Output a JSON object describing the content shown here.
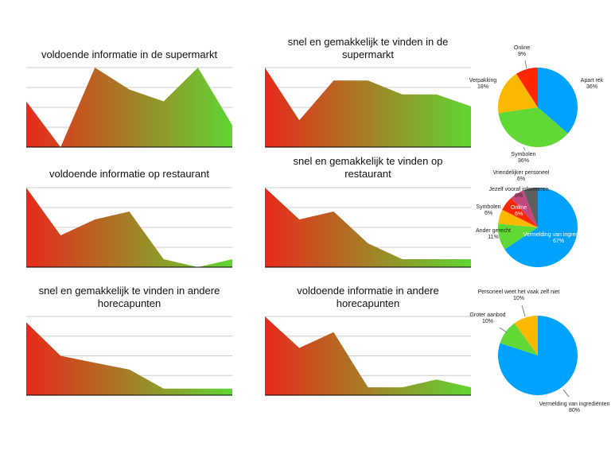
{
  "colors": {
    "gradient_start": "#e8291a",
    "gradient_end": "#5fd632",
    "grid": "#cccccc",
    "blue": "#00a2ff",
    "green": "#61d836",
    "orange": "#fbb800",
    "red": "#ff2600",
    "pink": "#c2497d",
    "gray": "#5e5e5e"
  },
  "chart_data": [
    {
      "type": "area",
      "title_lines": [
        "voldoende informatie in de supermarkt"
      ],
      "values": [
        2.3,
        0,
        4,
        2.9,
        2.3,
        4,
        1.1
      ],
      "ylim": [
        0,
        4
      ],
      "grid": true
    },
    {
      "type": "area",
      "title_lines": [
        "snel en gemakkelijk te vinden in de",
        "supermarkt"
      ],
      "values": [
        4,
        1.35,
        3.35,
        3.35,
        2.65,
        2.65,
        2.05
      ],
      "ylim": [
        0,
        4
      ],
      "grid": true
    },
    {
      "type": "area",
      "title_lines": [
        "voldoende informatie op restaurant"
      ],
      "values": [
        4,
        1.6,
        2.4,
        2.8,
        0.4,
        0,
        0.4
      ],
      "ylim": [
        0,
        4
      ],
      "grid": true
    },
    {
      "type": "area",
      "title_lines": [
        "snel en gemakkelijk te vinden op",
        "restaurant"
      ],
      "values": [
        4,
        2.4,
        2.8,
        1.2,
        0.4,
        0.4,
        0.4
      ],
      "ylim": [
        0,
        4
      ],
      "grid": true
    },
    {
      "type": "area",
      "title_lines": [
        "snel en gemakkelijk te vinden in andere",
        "horecapunten"
      ],
      "values": [
        3.7,
        2.0,
        1.65,
        1.3,
        0.33,
        0.33,
        0.33
      ],
      "ylim": [
        0,
        4
      ],
      "grid": true
    },
    {
      "type": "area",
      "title_lines": [
        "voldoende informatie in andere",
        "horecapunten"
      ],
      "values": [
        4,
        2.4,
        3.2,
        0.4,
        0.4,
        0.8,
        0.4
      ],
      "ylim": [
        0,
        4
      ],
      "grid": true
    },
    {
      "type": "pie",
      "slices": [
        {
          "label": "Apart rek",
          "pct": "36%",
          "value": 36,
          "color": "#00a2ff"
        },
        {
          "label": "Symbolen",
          "pct": "36%",
          "value": 36,
          "color": "#61d836"
        },
        {
          "label": "Verpakking",
          "pct": "18%",
          "value": 18,
          "color": "#fbb800"
        },
        {
          "label": "Online",
          "pct": "9%",
          "value": 9,
          "color": "#ff2600"
        }
      ]
    },
    {
      "type": "pie",
      "slices": [
        {
          "label": "Vermelding van ingrediënten",
          "pct": "67%",
          "value": 67,
          "color": "#00a2ff"
        },
        {
          "label": "Ander gerecht",
          "pct": "11%",
          "value": 11,
          "color": "#61d836"
        },
        {
          "label": "Symbolen",
          "pct": "6%",
          "value": 6,
          "color": "#fbb800"
        },
        {
          "label": "Online",
          "pct": "6%",
          "value": 6,
          "color": "#ff2600"
        },
        {
          "label": "Jezelf vooraf informeren",
          "pct": "6%",
          "value": 6,
          "color": "#c2497d"
        },
        {
          "label": "Vriendelijker personeel",
          "pct": "6%",
          "value": 6,
          "color": "#5e5e5e"
        }
      ]
    },
    {
      "type": "pie",
      "slices": [
        {
          "label": "Vermelding van ingrediënten",
          "pct": "80%",
          "value": 80,
          "color": "#00a2ff"
        },
        {
          "label": "Groter aanbod",
          "pct": "10%",
          "value": 10,
          "color": "#61d836"
        },
        {
          "label": "Personeel weet het vaak zelf niet",
          "pct": "10%",
          "value": 10,
          "color": "#fbb800"
        }
      ]
    }
  ]
}
